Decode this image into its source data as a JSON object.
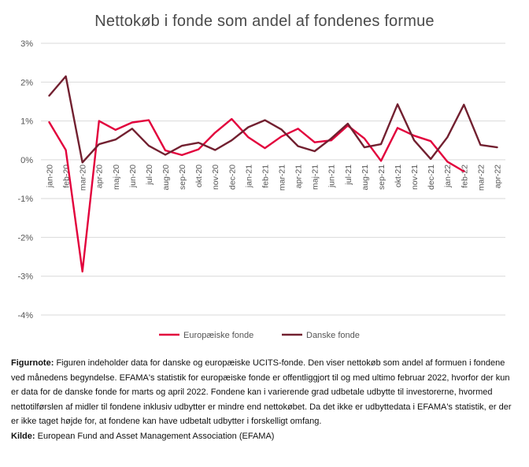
{
  "chart_data": {
    "type": "line",
    "title": "Nettokøb i fonde som andel af fondenes formue",
    "xlabel": "",
    "ylabel": "",
    "ylim": [
      -4,
      3
    ],
    "yticks": [
      "-4%",
      "-3%",
      "-2%",
      "-1%",
      "0%",
      "1%",
      "2%",
      "3%"
    ],
    "grid": true,
    "legend_position": "bottom",
    "categories": [
      "jan-20",
      "feb-20",
      "mar-20",
      "apr-20",
      "maj-20",
      "jun-20",
      "jul-20",
      "aug-20",
      "sep-20",
      "okt-20",
      "nov-20",
      "dec-20",
      "jan-21",
      "feb-21",
      "mar-21",
      "apr-21",
      "maj-21",
      "jun-21",
      "jul-21",
      "aug-21",
      "sep-21",
      "okt-21",
      "nov-21",
      "dec-21",
      "jan-22",
      "feb-22",
      "mar-22",
      "apr-22"
    ],
    "series": [
      {
        "name": "Europæiske fonde",
        "color": "#e2003c",
        "values": [
          0.97,
          0.25,
          -2.88,
          1.0,
          0.77,
          0.96,
          1.02,
          0.24,
          0.12,
          0.27,
          0.7,
          1.05,
          0.58,
          0.3,
          0.6,
          0.8,
          0.45,
          0.5,
          0.88,
          0.55,
          -0.03,
          0.82,
          0.62,
          0.48,
          -0.05,
          -0.3,
          null,
          null
        ]
      },
      {
        "name": "Danske fonde",
        "color": "#722030",
        "values": [
          1.65,
          2.15,
          -0.07,
          0.4,
          0.52,
          0.8,
          0.36,
          0.13,
          0.36,
          0.44,
          0.25,
          0.5,
          0.84,
          1.02,
          0.78,
          0.35,
          0.22,
          0.55,
          0.93,
          0.32,
          0.4,
          1.43,
          0.5,
          0.02,
          0.58,
          1.42,
          0.38,
          0.32
        ]
      }
    ]
  },
  "note": {
    "figurnote_label": "Figurnote:",
    "figurnote_text": " Figuren indeholder data for danske og europæiske UCITS-fonde. Den viser nettokøb som andel af formuen i fondene ved månedens begyndelse. EFAMA's statistik for europæiske fonde er offentliggjort til og med ultimo februar 2022, hvorfor der kun er data for de danske fonde for marts og april 2022. Fondene kan i varierende grad udbetale udbytte til investorerne, hvormed nettotilførslen af midler til fondene inklusiv udbytter er mindre end nettokøbet. Da det ikke er udbyttedata i EFAMA's statistik, er der er ikke taget højde for, at fondene kan have udbetalt udbytter i forskelligt omfang.",
    "kilde_label": "Kilde:",
    "kilde_text": " European Fund and Asset Management Association (EFAMA)"
  }
}
